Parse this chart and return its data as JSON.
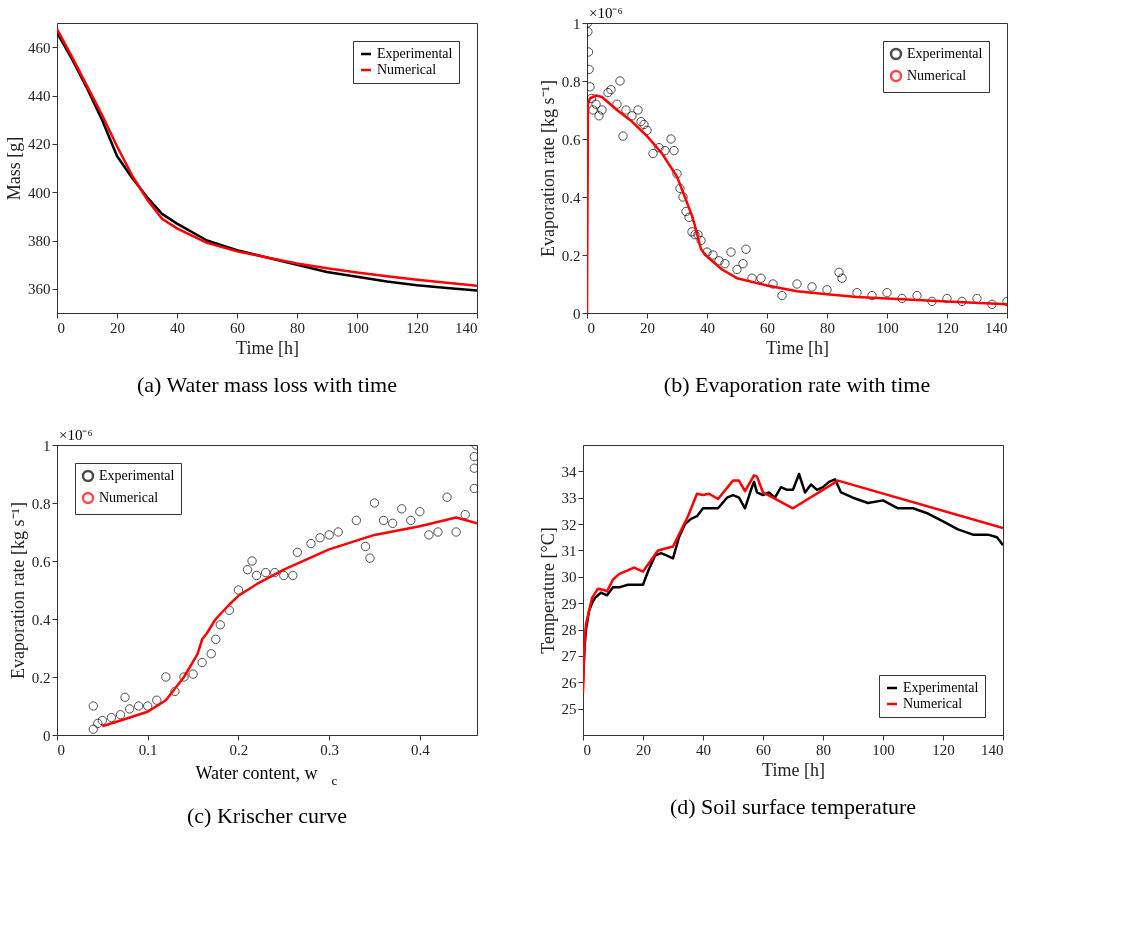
{
  "chart_data": [
    {
      "type": "line",
      "title": "(a) Water mass loss with time",
      "xlabel": "Time [h]",
      "ylabel": "Mass [g]",
      "xlim": [
        0,
        140
      ],
      "xticks": [
        0,
        20,
        40,
        60,
        80,
        100,
        120,
        140
      ],
      "ylim": [
        350,
        470
      ],
      "yticks": [
        360,
        380,
        400,
        420,
        440,
        460
      ],
      "legend": "top right",
      "series": [
        {
          "name": "Experimental",
          "color": "#000000",
          "x": [
            0,
            5,
            10,
            15,
            20,
            25,
            30,
            35,
            40,
            50,
            60,
            70,
            80,
            90,
            100,
            110,
            120,
            130,
            140
          ],
          "values": [
            466,
            455,
            443,
            430,
            415,
            406,
            398,
            391,
            387,
            380,
            376,
            373,
            370,
            367,
            365,
            363,
            361.5,
            360.3,
            359.3
          ]
        },
        {
          "name": "Numerical",
          "color": "#ff0000",
          "x": [
            0,
            5,
            10,
            15,
            20,
            25,
            30,
            35,
            40,
            50,
            60,
            70,
            80,
            90,
            100,
            110,
            120,
            130,
            140
          ],
          "values": [
            467.5,
            456,
            444,
            432,
            419,
            407,
            397,
            389,
            385,
            379,
            375.5,
            373,
            370.5,
            368.5,
            366.8,
            365.2,
            363.8,
            362.5,
            361.3
          ]
        }
      ]
    },
    {
      "type": "line",
      "title": "(b) Evaporation rate with time",
      "xlabel": "Time [h]",
      "ylabel": "Evaporation rate [kg s⁻¹]",
      "annotations": [
        "×10⁻⁶"
      ],
      "xlim": [
        0,
        140
      ],
      "xticks": [
        0,
        20,
        40,
        60,
        80,
        100,
        120,
        140
      ],
      "ylim": [
        0,
        1
      ],
      "yticks": [
        0,
        0.2,
        0.4,
        0.6,
        0.8,
        1
      ],
      "legend": "top right",
      "series": [
        {
          "name": "Experimental",
          "color": "#000000",
          "type": "scatter",
          "marker": "circle",
          "x": [
            0.2,
            0.3,
            0.5,
            0.7,
            1,
            1.5,
            2,
            3,
            4,
            5,
            7,
            8,
            10,
            11,
            12,
            13,
            15,
            17,
            18,
            19,
            20,
            22,
            24,
            26,
            28,
            29,
            30,
            31,
            32,
            33,
            34,
            35,
            36,
            37,
            38,
            40,
            42,
            44,
            46,
            48,
            50,
            52,
            53,
            55,
            58,
            62,
            65,
            70,
            75,
            80,
            84,
            85,
            90,
            95,
            100,
            105,
            110,
            115,
            120,
            125,
            130,
            135,
            140
          ],
          "values": [
            1.0,
            0.97,
            0.9,
            0.84,
            0.78,
            0.74,
            0.7,
            0.72,
            0.68,
            0.7,
            0.76,
            0.77,
            0.72,
            0.8,
            0.61,
            0.7,
            0.68,
            0.7,
            0.66,
            0.65,
            0.63,
            0.55,
            0.57,
            0.56,
            0.6,
            0.56,
            0.48,
            0.43,
            0.4,
            0.35,
            0.33,
            0.28,
            0.27,
            0.27,
            0.25,
            0.21,
            0.2,
            0.18,
            0.17,
            0.21,
            0.15,
            0.17,
            0.22,
            0.12,
            0.12,
            0.1,
            0.06,
            0.1,
            0.09,
            0.08,
            0.14,
            0.12,
            0.07,
            0.06,
            0.07,
            0.05,
            0.06,
            0.04,
            0.05,
            0.04,
            0.05,
            0.03,
            0.04
          ]
        },
        {
          "name": "Numerical",
          "color": "#ff0000",
          "x": [
            0,
            0.3,
            1,
            3,
            5,
            10,
            15,
            20,
            25,
            30,
            33,
            35,
            36,
            38,
            40,
            45,
            50,
            60,
            70,
            80,
            90,
            100,
            120,
            140
          ],
          "values": [
            0,
            0.72,
            0.74,
            0.75,
            0.745,
            0.7,
            0.66,
            0.61,
            0.55,
            0.47,
            0.39,
            0.335,
            0.3,
            0.22,
            0.195,
            0.15,
            0.12,
            0.095,
            0.075,
            0.065,
            0.055,
            0.05,
            0.04,
            0.03
          ]
        }
      ]
    },
    {
      "type": "line",
      "title": "(c) Krischer curve",
      "xlabel": "Water content, w$_{c}$",
      "ylabel": "Evaporation rate [kg s⁻¹]",
      "annotations": [
        "×10⁻⁶"
      ],
      "xlim": [
        0,
        0.463
      ],
      "xticks": [
        0,
        0.1,
        0.2,
        0.3,
        0.4
      ],
      "ylim": [
        0,
        1
      ],
      "yticks": [
        0,
        0.2,
        0.4,
        0.6,
        0.8,
        1
      ],
      "legend": "top left",
      "series": [
        {
          "name": "Experimental",
          "color": "#000000",
          "type": "scatter",
          "marker": "circle",
          "x": [
            0.04,
            0.04,
            0.045,
            0.05,
            0.06,
            0.07,
            0.075,
            0.08,
            0.09,
            0.1,
            0.11,
            0.12,
            0.13,
            0.14,
            0.15,
            0.16,
            0.17,
            0.175,
            0.18,
            0.19,
            0.2,
            0.21,
            0.215,
            0.22,
            0.23,
            0.24,
            0.25,
            0.26,
            0.265,
            0.28,
            0.29,
            0.3,
            0.31,
            0.33,
            0.34,
            0.345,
            0.35,
            0.36,
            0.37,
            0.38,
            0.39,
            0.4,
            0.41,
            0.42,
            0.43,
            0.44,
            0.45,
            0.46,
            0.46,
            0.46,
            0.462
          ],
          "values": [
            0.1,
            0.02,
            0.04,
            0.05,
            0.06,
            0.07,
            0.13,
            0.09,
            0.1,
            0.1,
            0.12,
            0.2,
            0.15,
            0.2,
            0.21,
            0.25,
            0.28,
            0.33,
            0.38,
            0.43,
            0.5,
            0.57,
            0.6,
            0.55,
            0.56,
            0.56,
            0.55,
            0.55,
            0.63,
            0.66,
            0.68,
            0.69,
            0.7,
            0.74,
            0.65,
            0.61,
            0.8,
            0.74,
            0.73,
            0.78,
            0.74,
            0.77,
            0.69,
            0.7,
            0.82,
            0.7,
            0.76,
            0.85,
            0.92,
            0.96,
            1.0
          ]
        },
        {
          "name": "Numerical",
          "color": "#ff0000",
          "x": [
            0.05,
            0.07,
            0.1,
            0.12,
            0.14,
            0.155,
            0.16,
            0.165,
            0.175,
            0.19,
            0.2,
            0.22,
            0.25,
            0.3,
            0.35,
            0.4,
            0.44,
            0.463
          ],
          "values": [
            0.03,
            0.05,
            0.08,
            0.12,
            0.2,
            0.28,
            0.33,
            0.35,
            0.4,
            0.45,
            0.48,
            0.52,
            0.57,
            0.64,
            0.69,
            0.72,
            0.75,
            0.73
          ]
        }
      ]
    },
    {
      "type": "line",
      "title": "(d) Soil surface temperature",
      "xlabel": "Time [h]",
      "ylabel": "Temperature [°C]",
      "xlim": [
        0,
        140
      ],
      "xticks": [
        0,
        20,
        40,
        60,
        80,
        100,
        120,
        140
      ],
      "ylim": [
        24,
        35
      ],
      "yticks": [
        25,
        26,
        27,
        28,
        29,
        30,
        31,
        32,
        33,
        34
      ],
      "legend": "bottom right",
      "series": [
        {
          "name": "Experimental",
          "color": "#000000",
          "x": [
            0,
            0.5,
            1,
            2,
            3,
            4,
            5,
            6,
            8,
            10,
            12,
            15,
            18,
            20,
            22,
            24,
            26,
            28,
            30,
            32,
            34,
            36,
            38,
            40,
            42,
            45,
            48,
            50,
            52,
            54,
            56,
            57,
            58,
            60,
            62,
            64,
            66,
            68,
            70,
            72,
            74,
            76,
            78,
            80,
            82,
            84,
            86,
            90,
            95,
            100,
            105,
            110,
            115,
            120,
            125,
            130,
            135,
            138,
            140
          ],
          "values": [
            26,
            27.3,
            28,
            28.7,
            29,
            29.2,
            29.3,
            29.4,
            29.3,
            29.6,
            29.6,
            29.7,
            29.7,
            29.7,
            30.3,
            30.8,
            30.9,
            30.8,
            30.7,
            31.5,
            32,
            32.2,
            32.3,
            32.6,
            32.6,
            32.6,
            33,
            33.1,
            33,
            32.6,
            33.3,
            33.6,
            33.2,
            33.1,
            33.2,
            33.0,
            33.4,
            33.3,
            33.3,
            33.9,
            33.2,
            33.5,
            33.3,
            33.4,
            33.6,
            33.7,
            33.2,
            33,
            32.8,
            32.9,
            32.6,
            32.6,
            32.4,
            32.1,
            31.8,
            31.6,
            31.6,
            31.5,
            31.2
          ]
        },
        {
          "name": "Numerical",
          "color": "#ff0000",
          "x": [
            0,
            0.5,
            1,
            3,
            5,
            7,
            8,
            10,
            12,
            17,
            20,
            25,
            30,
            35,
            38,
            40,
            42,
            45,
            50,
            52,
            54,
            57,
            58,
            60,
            70,
            85,
            140
          ],
          "values": [
            25.6,
            27.5,
            28.2,
            29.2,
            29.55,
            29.5,
            29.45,
            29.9,
            30.1,
            30.35,
            30.2,
            31,
            31.15,
            32.3,
            33.15,
            33.1,
            33.15,
            32.95,
            33.65,
            33.65,
            33.25,
            33.85,
            33.8,
            33.2,
            32.6,
            33.65,
            31.85
          ]
        }
      ]
    }
  ]
}
